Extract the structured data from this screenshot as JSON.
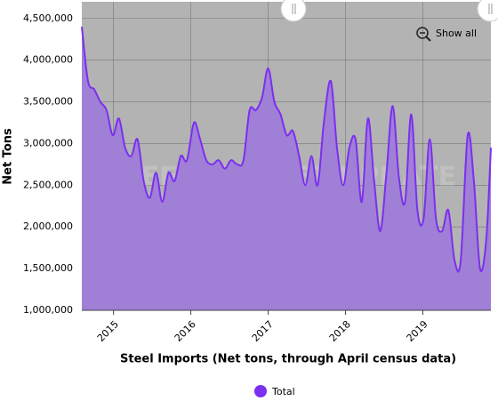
{
  "chart_data": {
    "type": "area",
    "title": "Steel Imports (Net tons, through April census data)",
    "y_label": "Net Tons",
    "watermark": "STEEL MARKET UPDATE",
    "reset_button": "Show all",
    "x": [
      2014.59,
      2014.67,
      2014.75,
      2014.83,
      2014.91,
      2014.99,
      2015.07,
      2015.15,
      2015.23,
      2015.31,
      2015.39,
      2015.47,
      2015.55,
      2015.63,
      2015.71,
      2015.79,
      2015.87,
      2015.95,
      2016.04,
      2016.12,
      2016.2,
      2016.28,
      2016.36,
      2016.44,
      2016.52,
      2016.6,
      2016.68,
      2016.76,
      2016.84,
      2016.92,
      2017.0,
      2017.08,
      2017.16,
      2017.24,
      2017.32,
      2017.4,
      2017.48,
      2017.56,
      2017.64,
      2017.72,
      2017.81,
      2017.89,
      2017.97,
      2018.05,
      2018.13,
      2018.21,
      2018.29,
      2018.37,
      2018.45,
      2018.53,
      2018.61,
      2018.69,
      2018.77,
      2018.85,
      2018.93,
      2019.01,
      2019.09,
      2019.17,
      2019.25,
      2019.33,
      2019.41,
      2019.49,
      2019.58,
      2019.66,
      2019.74,
      2019.82,
      2019.88
    ],
    "series": [
      {
        "name": "Total",
        "color": "#7b2ff0",
        "fill": "#a07fd6",
        "values": [
          4400000,
          3750000,
          3650000,
          3500000,
          3400000,
          3100000,
          3300000,
          2950000,
          2850000,
          3050000,
          2550000,
          2350000,
          2650000,
          2300000,
          2650000,
          2550000,
          2850000,
          2800000,
          3250000,
          3050000,
          2800000,
          2750000,
          2800000,
          2700000,
          2800000,
          2750000,
          2800000,
          3400000,
          3400000,
          3550000,
          3900000,
          3500000,
          3350000,
          3100000,
          3150000,
          2850000,
          2500000,
          2850000,
          2500000,
          3250000,
          3750000,
          2950000,
          2500000,
          2950000,
          3050000,
          2300000,
          3300000,
          2550000,
          1950000,
          2650000,
          3450000,
          2600000,
          2300000,
          3350000,
          2200000,
          2100000,
          3050000,
          2100000,
          1950000,
          2200000,
          1600000,
          1600000,
          3100000,
          2550000,
          1500000,
          1850000,
          2950000
        ]
      }
    ],
    "xlim": [
      2014.59,
      2019.88
    ],
    "xticks": [
      2015,
      2016,
      2017,
      2018,
      2019
    ],
    "ylim": [
      1000000,
      4700000
    ],
    "yticks": [
      {
        "value": 1000000,
        "label": "1,000,000"
      },
      {
        "value": 1500000,
        "label": "1,500,000"
      },
      {
        "value": 2000000,
        "label": "2,000,000"
      },
      {
        "value": 2500000,
        "label": "2,500,000"
      },
      {
        "value": 3000000,
        "label": "3,000,000"
      },
      {
        "value": 3500000,
        "label": "3,500,000"
      },
      {
        "value": 4000000,
        "label": "4,000,000"
      },
      {
        "value": 4500000,
        "label": "4,500,000"
      }
    ],
    "grid": true,
    "plot_background": "#b3b3b3",
    "legend": "bottom"
  }
}
